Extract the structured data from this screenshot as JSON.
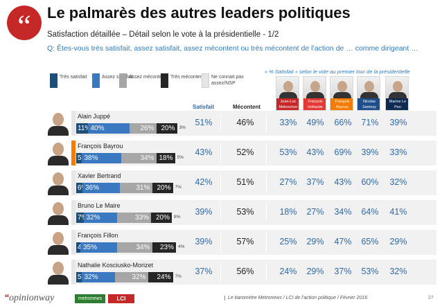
{
  "header": {
    "quote_mark": "“",
    "title": "Le palmarès des autres leaders politiques",
    "subtitle": "Satisfaction détaillée – Détail selon le vote à la présidentielle - 1/2",
    "question": "Q: Êtes-vous très satisfait, assez satisfait, assez mécontent ou très mécontent de l’action de … comme dirigeant …"
  },
  "legend": [
    {
      "label": "Très satisfait",
      "color": "#1f4e79"
    },
    {
      "label": "Assez satisfait",
      "color": "#3a78c2"
    },
    {
      "label": "Assez mécontent",
      "color": "#a6a6a6"
    },
    {
      "label": "Très mécontent",
      "color": "#262626"
    },
    {
      "label": "Ne connait pas assez/NSP",
      "color": "#e6e6e6"
    }
  ],
  "candidate_header": "« % Satisfait » selon le vote au premier tour de la présidentielle",
  "candidates": [
    {
      "name": "Jean-Luc Mélenchon",
      "color": "#c62828"
    },
    {
      "name": "François Hollande",
      "color": "#e53935"
    },
    {
      "name": "François Bayrou",
      "color": "#f57c00"
    },
    {
      "name": "Nicolas Sarkozy",
      "color": "#1f4e8c"
    },
    {
      "name": "Marine Le Pen",
      "color": "#0d2a52"
    }
  ],
  "columns": {
    "satisfait": "Satisfait",
    "mecontent": "Mécontent"
  },
  "chart_data": {
    "type": "bar",
    "title": "Le palmarès des autres leaders politiques",
    "stacked": true,
    "categories": [
      "Alain Juppé",
      "François Bayrou",
      "Xavier Bertrand",
      "Bruno Le Maire",
      "François Fillon",
      "Nathalie Kosciusko-Morizet"
    ],
    "accent_colors": [
      "#e6e6e6",
      "#f57c00",
      "#e6e6e6",
      "#e6e6e6",
      "#e6e6e6",
      "#e6e6e6"
    ],
    "series": [
      {
        "name": "Très satisfait",
        "values": [
          11,
          5,
          6,
          7,
          4,
          5
        ]
      },
      {
        "name": "Assez satisfait",
        "values": [
          40,
          38,
          36,
          32,
          35,
          32
        ]
      },
      {
        "name": "Assez mécontent",
        "values": [
          26,
          34,
          31,
          33,
          34,
          32
        ]
      },
      {
        "name": "Très mécontent",
        "values": [
          20,
          18,
          20,
          20,
          23,
          24
        ]
      },
      {
        "name": "Ne connait pas assez/NSP",
        "values": [
          3,
          5,
          7,
          8,
          4,
          7
        ]
      }
    ],
    "satisfait": [
      "51%",
      "43%",
      "42%",
      "39%",
      "39%",
      "37%"
    ],
    "mecontent": [
      "46%",
      "52%",
      "51%",
      "53%",
      "57%",
      "56%"
    ],
    "by_vote": {
      "columns": [
        "Jean-Luc Mélenchon",
        "François Hollande",
        "François Bayrou",
        "Nicolas Sarkozy",
        "Marine Le Pen"
      ],
      "rows": [
        [
          "33%",
          "49%",
          "66%",
          "71%",
          "39%"
        ],
        [
          "53%",
          "43%",
          "69%",
          "39%",
          "33%"
        ],
        [
          "27%",
          "37%",
          "43%",
          "60%",
          "32%"
        ],
        [
          "18%",
          "27%",
          "34%",
          "64%",
          "41%"
        ],
        [
          "25%",
          "29%",
          "47%",
          "65%",
          "29%"
        ],
        [
          "24%",
          "29%",
          "37%",
          "53%",
          "32%"
        ]
      ]
    }
  },
  "footer": {
    "logo": "opinionway",
    "logo_quote": "“",
    "metro": "metronews",
    "lci": "LCI",
    "text": "Le baromètre Metronews / LCI de l’action politique / Février 2016",
    "page": "27"
  }
}
